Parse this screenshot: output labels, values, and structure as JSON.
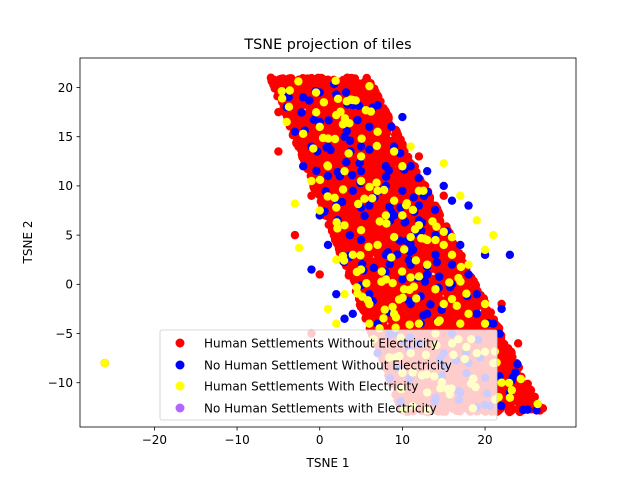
{
  "chart_data": {
    "type": "scatter",
    "title": "TSNE projection of tiles",
    "xlabel": "TSNE 1",
    "ylabel": "TSNE 2",
    "xlim": [
      -29,
      31
    ],
    "ylim": [
      -14.5,
      23
    ],
    "xticks": [
      -20,
      -10,
      0,
      10,
      20
    ],
    "yticks": [
      -10,
      -5,
      0,
      5,
      10,
      15,
      20
    ],
    "grid": false,
    "legend_placement": "lower-center",
    "outlier_point": [
      -26,
      -8
    ],
    "series": [
      {
        "name": "Human Settlements Without Electricity",
        "color": "#ff0000",
        "count": 5000,
        "points": [
          [
            -26,
            -8
          ],
          [
            27,
            -12.6
          ],
          [
            26,
            -12.5
          ],
          [
            1,
            20.8
          ],
          [
            -5,
            17.5
          ],
          [
            -5,
            13.5
          ],
          [
            -1,
            9
          ],
          [
            0,
            1
          ],
          [
            3,
            19
          ],
          [
            8,
            17
          ],
          [
            12,
            13
          ],
          [
            15,
            9
          ],
          [
            20,
            3
          ],
          [
            22,
            -2
          ],
          [
            24,
            -6
          ],
          [
            25,
            -11
          ],
          [
            6,
            10
          ],
          [
            10,
            5
          ],
          [
            14,
            0
          ],
          [
            18,
            -5
          ],
          [
            2,
            13
          ],
          [
            6,
            3
          ],
          [
            -3,
            5
          ],
          [
            -1,
            -5
          ],
          [
            10,
            -7
          ],
          [
            21,
            -12
          ]
        ]
      },
      {
        "name": "No Human Settlement Without Electricity",
        "color": "#0000ff",
        "count": 200,
        "points": [
          [
            -4,
            18
          ],
          [
            -2,
            19
          ],
          [
            0,
            19.5
          ],
          [
            2,
            19.3
          ],
          [
            4,
            18.2
          ],
          [
            7,
            18.2
          ],
          [
            -3,
            15.5
          ],
          [
            0,
            16.5
          ],
          [
            1,
            14
          ],
          [
            3,
            15
          ],
          [
            5,
            14
          ],
          [
            8,
            12
          ],
          [
            9,
            14
          ],
          [
            11,
            12
          ],
          [
            13,
            11.5
          ],
          [
            15,
            10
          ],
          [
            16,
            8.5
          ],
          [
            18,
            8
          ],
          [
            -2,
            12
          ],
          [
            1,
            11
          ],
          [
            4,
            9.5
          ],
          [
            6,
            8
          ],
          [
            9,
            7
          ],
          [
            12,
            6.5
          ],
          [
            14,
            5
          ],
          [
            17,
            4
          ],
          [
            20,
            3
          ],
          [
            23,
            3
          ],
          [
            0,
            7
          ],
          [
            3,
            6
          ],
          [
            5,
            4.5
          ],
          [
            8,
            3
          ],
          [
            11,
            2
          ],
          [
            13,
            1
          ],
          [
            16,
            0
          ],
          [
            19,
            -1
          ],
          [
            22,
            -2.5
          ],
          [
            -1,
            1.5
          ],
          [
            2,
            -1
          ],
          [
            4,
            -3
          ],
          [
            7,
            -4
          ],
          [
            9,
            -5
          ],
          [
            12,
            -6
          ],
          [
            15,
            -7
          ],
          [
            18,
            -8
          ],
          [
            20,
            -9.5
          ],
          [
            23,
            -11
          ],
          [
            3,
            -3.5
          ],
          [
            6,
            -1
          ],
          [
            10,
            0.5
          ],
          [
            1,
            4
          ],
          [
            5,
            11.5
          ],
          [
            8,
            10
          ],
          [
            10,
            9.5
          ],
          [
            12,
            8
          ],
          [
            14,
            3
          ],
          [
            16,
            2
          ],
          [
            18,
            1
          ],
          [
            19,
            -3
          ],
          [
            21,
            -4
          ],
          [
            11,
            -2
          ],
          [
            13,
            -3
          ],
          [
            16,
            -5
          ],
          [
            17,
            -11
          ],
          [
            19,
            -12.5
          ],
          [
            7,
            -7
          ],
          [
            2,
            8
          ],
          [
            -1,
            14
          ],
          [
            6,
            16
          ],
          [
            10,
            17
          ]
        ]
      },
      {
        "name": "Human Settlements With Electricity",
        "color": "#ffff00",
        "count": 200,
        "points": [
          [
            -26,
            -8
          ],
          [
            -2.5,
            3.7
          ],
          [
            -4,
            16.5
          ],
          [
            -2,
            15.3
          ],
          [
            0,
            16
          ],
          [
            0.5,
            18.5
          ],
          [
            2,
            17.2
          ],
          [
            3.5,
            13.3
          ],
          [
            5,
            13
          ],
          [
            7,
            15.5
          ],
          [
            9,
            13.5
          ],
          [
            11,
            14
          ],
          [
            12,
            9.5
          ],
          [
            15,
            12.3
          ],
          [
            17,
            9
          ],
          [
            19,
            6.5
          ],
          [
            21,
            5
          ],
          [
            20,
            3.5
          ],
          [
            -3,
            8.2
          ],
          [
            -1,
            10.5
          ],
          [
            1,
            12
          ],
          [
            3,
            11.5
          ],
          [
            5,
            10.5
          ],
          [
            7,
            9.5
          ],
          [
            9,
            8.5
          ],
          [
            10,
            7
          ],
          [
            12,
            6
          ],
          [
            14,
            4.5
          ],
          [
            16,
            3
          ],
          [
            18,
            2
          ],
          [
            0,
            7.5
          ],
          [
            2,
            7.8
          ],
          [
            3,
            6
          ],
          [
            5,
            5.5
          ],
          [
            7,
            4
          ],
          [
            9,
            4.8
          ],
          [
            11,
            4.8
          ],
          [
            13,
            4.5
          ],
          [
            15,
            4
          ],
          [
            2,
            2.5
          ],
          [
            5,
            1.5
          ],
          [
            8,
            0.5
          ],
          [
            11,
            0.7
          ],
          [
            12,
            0.8
          ],
          [
            14,
            -0.5
          ],
          [
            16,
            -1.5
          ],
          [
            18,
            -3
          ],
          [
            20,
            -4
          ],
          [
            3,
            -1
          ],
          [
            6,
            -2
          ],
          [
            9,
            -3
          ],
          [
            12,
            -4
          ],
          [
            14,
            -5
          ],
          [
            16,
            -6
          ],
          [
            19,
            -7
          ],
          [
            21,
            -8
          ],
          [
            22,
            -10
          ],
          [
            10,
            -9
          ],
          [
            13,
            -11
          ],
          [
            1,
            -2.5
          ],
          [
            2,
            -4
          ],
          [
            6,
            -4
          ],
          [
            11,
            -7
          ],
          [
            17,
            -4
          ],
          [
            4,
            3
          ],
          [
            8,
            7
          ],
          [
            10,
            12
          ],
          [
            13,
            2
          ],
          [
            15,
            -2
          ],
          [
            20,
            -2
          ]
        ]
      },
      {
        "name": "No Human Settlements with Electricity",
        "color": "#b266ff",
        "count": 0,
        "points": []
      }
    ]
  }
}
